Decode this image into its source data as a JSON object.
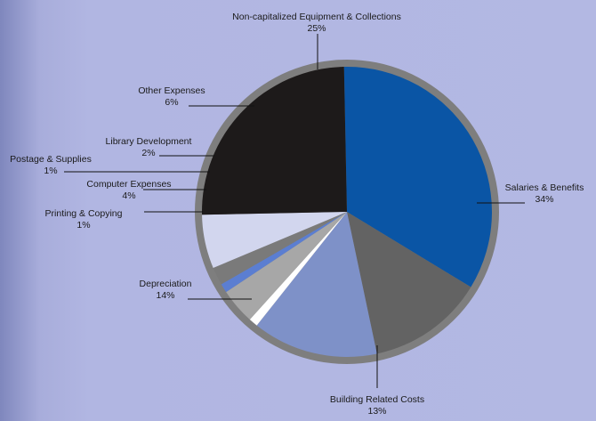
{
  "chart_data": {
    "type": "pie",
    "title": "",
    "slices": [
      {
        "name": "Salaries & Benefits",
        "percent_label": "34%",
        "value": 34,
        "color": "#0a55a5"
      },
      {
        "name": "Building Related Costs",
        "percent_label": "13%",
        "value": 13,
        "color": "#636363"
      },
      {
        "name": "Depreciation",
        "percent_label": "14%",
        "value": 14,
        "color": "#7e91c8"
      },
      {
        "name": "Printing & Copying",
        "percent_label": "1%",
        "value": 1,
        "color": "#ffffff"
      },
      {
        "name": "Computer Expenses",
        "percent_label": "4%",
        "value": 4,
        "color": "#a7a7a7"
      },
      {
        "name": "Postage & Supplies",
        "percent_label": "1%",
        "value": 1,
        "color": "#5b7ed1"
      },
      {
        "name": "Library Development",
        "percent_label": "2%",
        "value": 2,
        "color": "#7a7a7a"
      },
      {
        "name": "Other Expenses",
        "percent_label": "6%",
        "value": 6,
        "color": "#d2d6ee"
      },
      {
        "name": "Non-capitalized Equipment & Collections",
        "percent_label": "25%",
        "value": 25,
        "color": "#1d1a1a"
      }
    ],
    "rim_color": "#7e7e7e",
    "legend": "none (callout labels with leader lines)"
  }
}
